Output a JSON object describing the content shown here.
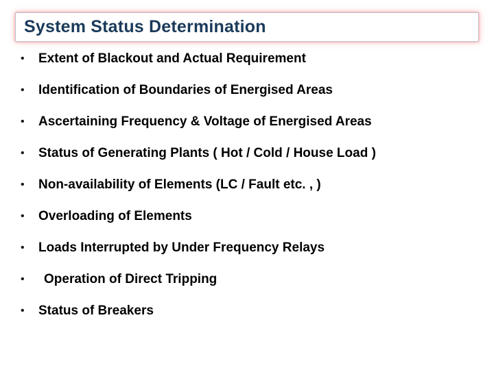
{
  "title": "System Status Determination",
  "bullets": [
    {
      "text": "Extent of Blackout and Actual Requirement",
      "indent": "indent-small"
    },
    {
      "text": "Identification of Boundaries of Energised Areas",
      "indent": "indent-small"
    },
    {
      "text": "Ascertaining Frequency & Voltage of Energised Areas",
      "indent": "indent-small"
    },
    {
      "text": "Status of Generating Plants ( Hot / Cold / House Load )",
      "indent": "indent-small"
    },
    {
      "text": "Non-availability of Elements (LC / Fault etc. , )",
      "indent": "indent-small"
    },
    {
      "text": "Overloading of Elements",
      "indent": "indent-small"
    },
    {
      "text": "Loads Interrupted by Under Frequency Relays",
      "indent": "indent-small"
    },
    {
      "text": "Operation of Direct Tripping",
      "indent": "indent-more"
    },
    {
      "text": "Status of Breakers",
      "indent": "indent-small"
    }
  ],
  "colors": {
    "title_text": "#1a3a5a",
    "title_border": "#b8c4d0",
    "glow": "#ff9a9a",
    "bullet_text": "#000000",
    "background": "#ffffff"
  }
}
